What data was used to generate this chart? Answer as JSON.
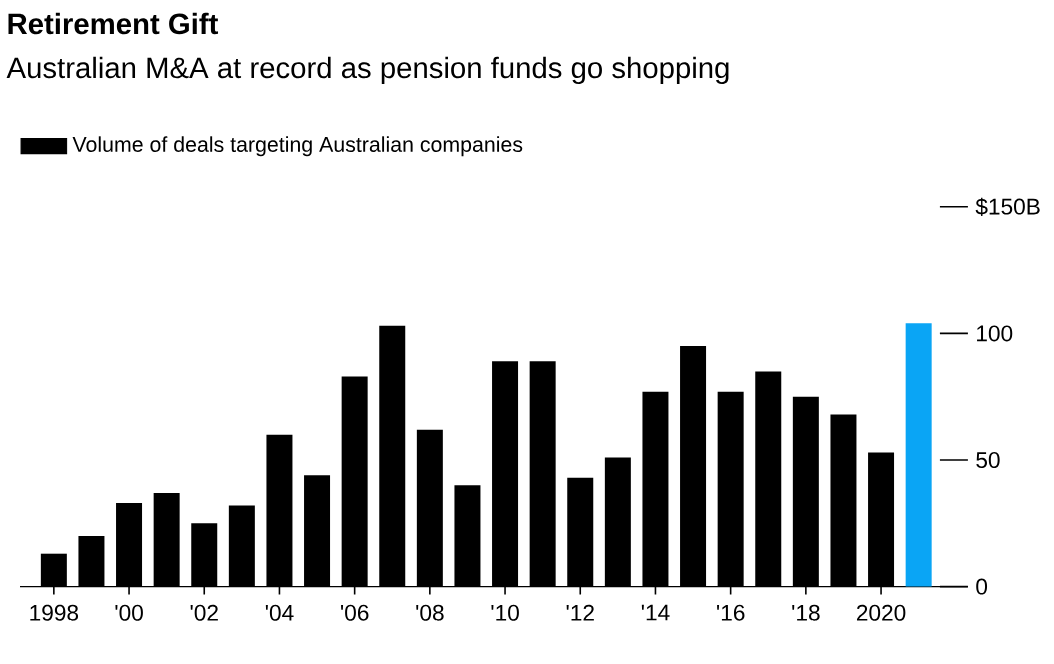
{
  "chart_data": {
    "type": "bar",
    "title": "Retirement Gift",
    "subtitle": "Australian M&A at record as pension funds go shopping",
    "categories": [
      "1998",
      null,
      "'00",
      null,
      "'02",
      null,
      "'04",
      null,
      "'06",
      null,
      "'08",
      null,
      "'10",
      null,
      "'12",
      null,
      "'14",
      null,
      "'16",
      null,
      "'18",
      null,
      "2020",
      null
    ],
    "series": [
      {
        "name": "Volume of deals targeting Australian companies",
        "color": "#000000",
        "colors": [
          "#000000",
          "#000000",
          "#000000",
          "#000000",
          "#000000",
          "#000000",
          "#000000",
          "#000000",
          "#000000",
          "#000000",
          "#000000",
          "#000000",
          "#000000",
          "#000000",
          "#000000",
          "#000000",
          "#000000",
          "#000000",
          "#000000",
          "#000000",
          "#000000",
          "#000000",
          "#000000",
          "#0aa5f5"
        ],
        "values": [
          13,
          20,
          33,
          37,
          25,
          32,
          60,
          44,
          83,
          103,
          62,
          40,
          89,
          89,
          43,
          51,
          77,
          95,
          77,
          85,
          75,
          68,
          53,
          104
        ]
      }
    ],
    "ylim": [
      0,
      150
    ],
    "yticks": [
      0,
      50,
      100,
      {
        "value": 150,
        "label": "$150B"
      }
    ],
    "legend": "top left"
  }
}
